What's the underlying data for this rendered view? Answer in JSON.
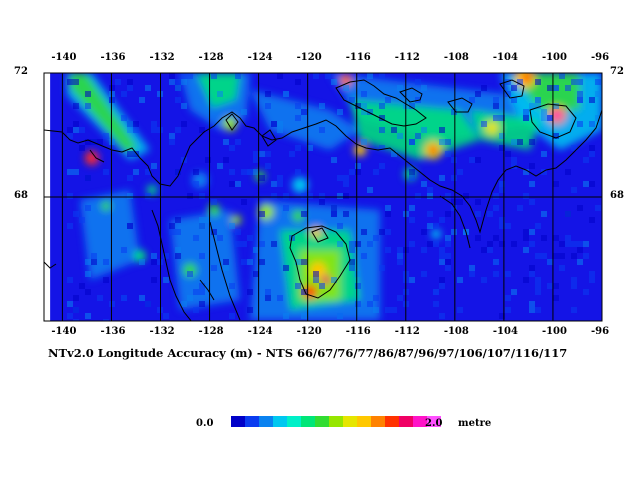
{
  "map": {
    "caption": "NTv2.0 Longitude Accuracy (m) - NTS 66/67/76/77/86/87/96/97/106/107/116/117",
    "longitude_labels": [
      "-140",
      "-136",
      "-132",
      "-128",
      "-124",
      "-120",
      "-116",
      "-112",
      "-108",
      "-104",
      "-100",
      "-96"
    ],
    "latitude_labels": [
      "72",
      "68"
    ],
    "longitudes": [
      -140,
      -136,
      -132,
      -128,
      -124,
      -120,
      -116,
      -112,
      -108,
      -104,
      -100,
      -96
    ],
    "latitudes": [
      72,
      68
    ],
    "extent": {
      "lon_min": -141.5,
      "lon_max": -96,
      "lat_min": 64,
      "lat_max": 72
    },
    "data_lon_min": -141,
    "background_color": "#1414e6"
  },
  "scale": {
    "min_label": "0.0",
    "max_label": "2.0",
    "unit_label": "metre",
    "colors": [
      "#0000c8",
      "#0a3cf0",
      "#0a82f0",
      "#00c8f0",
      "#00f0c8",
      "#00e678",
      "#32dc32",
      "#96e600",
      "#e6e600",
      "#ffc800",
      "#ff8200",
      "#ff3200",
      "#f00064",
      "#ff14c8",
      "#ff50ff"
    ]
  }
}
